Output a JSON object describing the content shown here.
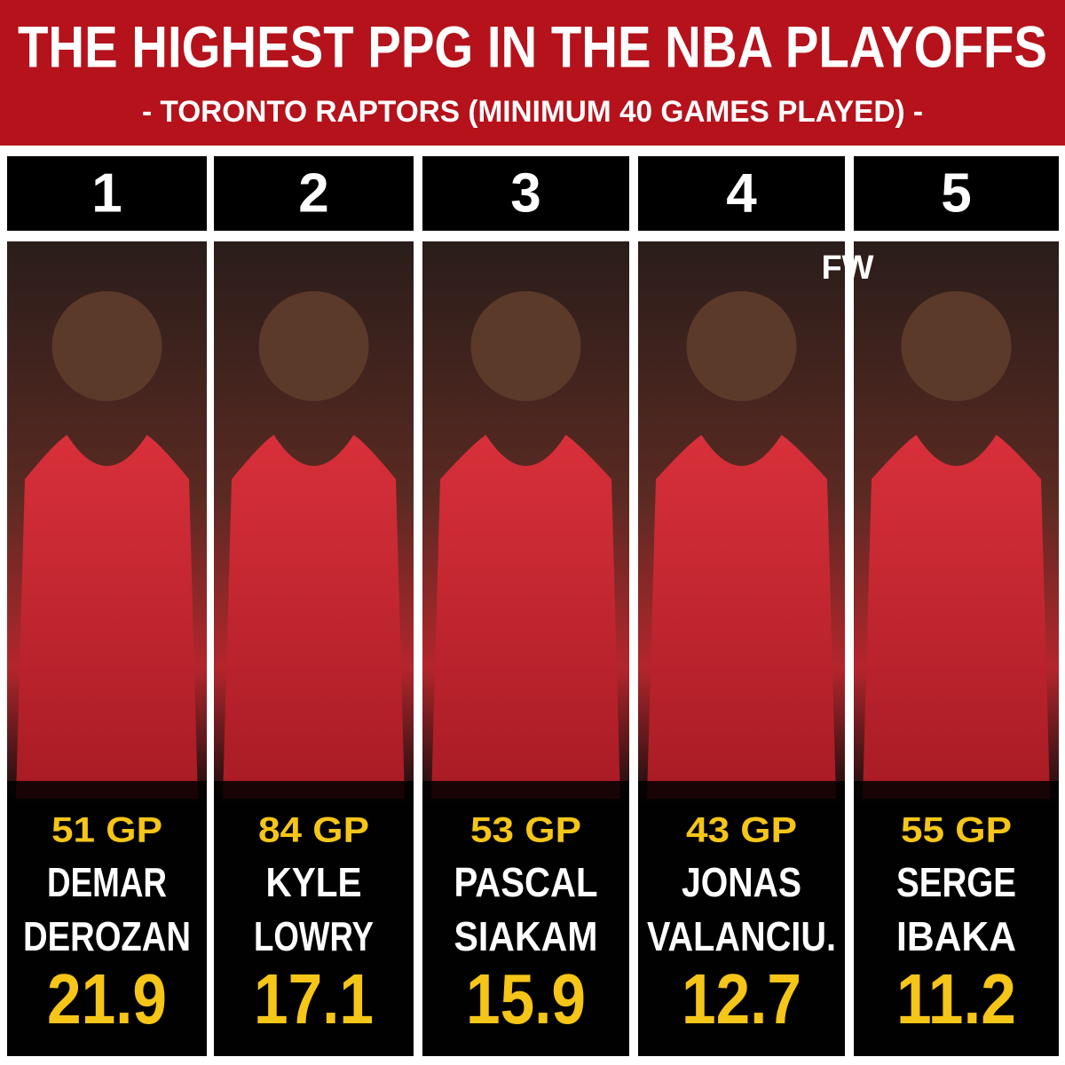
{
  "header": {
    "title": "THE HIGHEST PPG IN THE NBA PLAYOFFS",
    "subtitle": "- TORONTO RAPTORS (MINIMUM 40 GAMES PLAYED) -"
  },
  "logo": "FW",
  "players": [
    {
      "rank": 1,
      "games": "51 GP",
      "name": [
        "DEMAR",
        "DEROZAN"
      ],
      "ppg": 21.9
    },
    {
      "rank": 2,
      "games": "84 GP",
      "name": [
        "KYLE",
        "LOWRY"
      ],
      "ppg": 17.1
    },
    {
      "rank": 3,
      "games": "53 GP",
      "name": [
        "PASCAL",
        "SIAKAM"
      ],
      "ppg": 15.9
    },
    {
      "rank": 4,
      "games": "43 GP",
      "name": [
        "JONAS",
        "VALANCIU."
      ],
      "ppg": 12.7
    },
    {
      "rank": 5,
      "games": "55 GP",
      "name": [
        "SERGE",
        "IBAKA"
      ],
      "ppg": 11.2
    }
  ]
}
